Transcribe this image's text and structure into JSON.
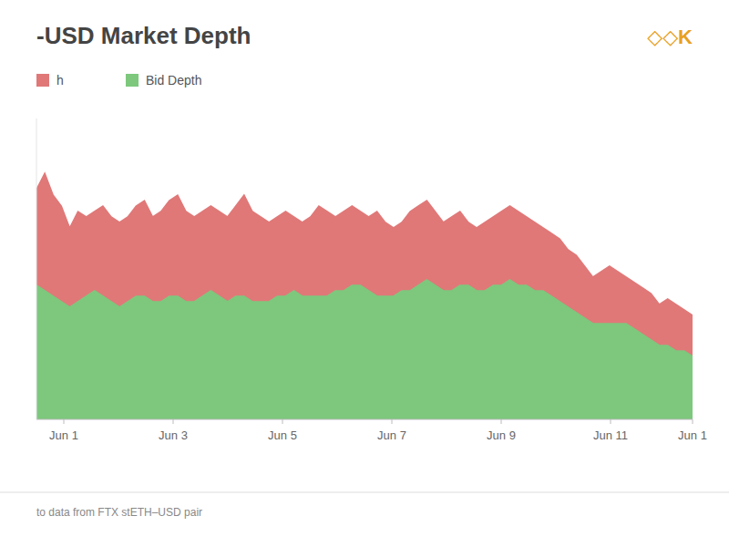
{
  "chart_data": {
    "type": "area",
    "title": "-USD Market Depth",
    "x": [
      0,
      0.1519,
      0.3038,
      0.4557,
      0.6076,
      0.7595,
      0.9114,
      1.0633,
      1.2152,
      1.3671,
      1.519,
      1.6709,
      1.8228,
      1.9747,
      2.1266,
      2.2785,
      2.4304,
      2.5823,
      2.7342,
      2.8861,
      3.038,
      3.1899,
      3.3418,
      3.4937,
      3.6456,
      3.7975,
      3.9494,
      4.1013,
      4.2532,
      4.4051,
      4.557,
      4.7089,
      4.8608,
      5.0127,
      5.1646,
      5.3165,
      5.4684,
      5.6203,
      5.7722,
      5.9241,
      6.0759,
      6.2278,
      6.3797,
      6.5316,
      6.6835,
      6.8354,
      6.9873,
      7.1392,
      7.2911,
      7.443,
      7.5949,
      7.7468,
      7.8987,
      8.0506,
      8.2025,
      8.3544,
      8.5063,
      8.6582,
      8.8101,
      8.962,
      9.1139,
      9.2658,
      9.4177,
      9.5696,
      9.7215,
      9.8734,
      10.0253,
      10.1772,
      10.3291,
      10.481,
      10.6329,
      10.7848,
      10.9367,
      11.0886,
      11.2405,
      11.3924,
      11.5443,
      11.6962,
      11.8481,
      12
    ],
    "series": [
      {
        "name": "h",
        "color": "#e07878",
        "values": [
          4.2,
          4.5,
          4.1,
          3.9,
          3.5,
          3.8,
          3.7,
          3.8,
          3.9,
          3.7,
          3.6,
          3.7,
          3.9,
          4.0,
          3.7,
          3.8,
          4.0,
          4.1,
          3.8,
          3.7,
          3.8,
          3.9,
          3.8,
          3.7,
          3.9,
          4.1,
          3.8,
          3.7,
          3.6,
          3.7,
          3.8,
          3.7,
          3.6,
          3.7,
          3.9,
          3.8,
          3.7,
          3.8,
          3.9,
          3.8,
          3.7,
          3.8,
          3.6,
          3.5,
          3.6,
          3.8,
          3.9,
          4.0,
          3.8,
          3.6,
          3.7,
          3.8,
          3.6,
          3.5,
          3.6,
          3.7,
          3.8,
          3.9,
          3.8,
          3.7,
          3.6,
          3.5,
          3.4,
          3.3,
          3.1,
          3.0,
          2.8,
          2.6,
          2.7,
          2.8,
          2.7,
          2.6,
          2.5,
          2.4,
          2.3,
          2.1,
          2.2,
          2.1,
          2.0,
          1.9
        ]
      },
      {
        "name": "Bid Depth",
        "color": "#7dc87d",
        "values": [
          2.45,
          2.35,
          2.25,
          2.15,
          2.05,
          2.15,
          2.25,
          2.35,
          2.25,
          2.15,
          2.05,
          2.15,
          2.25,
          2.25,
          2.15,
          2.15,
          2.25,
          2.25,
          2.15,
          2.15,
          2.25,
          2.35,
          2.25,
          2.15,
          2.25,
          2.25,
          2.15,
          2.15,
          2.15,
          2.25,
          2.25,
          2.35,
          2.25,
          2.25,
          2.25,
          2.25,
          2.35,
          2.35,
          2.45,
          2.45,
          2.35,
          2.25,
          2.25,
          2.25,
          2.35,
          2.35,
          2.45,
          2.55,
          2.45,
          2.35,
          2.35,
          2.45,
          2.45,
          2.35,
          2.35,
          2.45,
          2.45,
          2.55,
          2.45,
          2.45,
          2.35,
          2.35,
          2.25,
          2.15,
          2.05,
          1.95,
          1.85,
          1.75,
          1.75,
          1.75,
          1.75,
          1.75,
          1.65,
          1.55,
          1.45,
          1.35,
          1.35,
          1.25,
          1.25,
          1.15
        ]
      }
    ],
    "xlim": [
      0,
      12
    ],
    "xticks": [
      {
        "value": 0.5,
        "label": "Jun 1"
      },
      {
        "value": 2.5,
        "label": "Jun 3"
      },
      {
        "value": 4.5,
        "label": "Jun 5"
      },
      {
        "value": 6.5,
        "label": "Jun 7"
      },
      {
        "value": 8.5,
        "label": "Jun 9"
      },
      {
        "value": 10.5,
        "label": "Jun 11"
      },
      {
        "value": 12.0,
        "label": "Jun 1"
      }
    ],
    "ylim": [
      0,
      5.5
    ],
    "yticks": [],
    "tick_labels": "x",
    "grid": false,
    "legend": "top left",
    "annotations": [
      {
        "text": "◇◇K",
        "color": "#e8a020"
      },
      {
        "text": "to data from FTX stETH–USD pair"
      }
    ]
  }
}
